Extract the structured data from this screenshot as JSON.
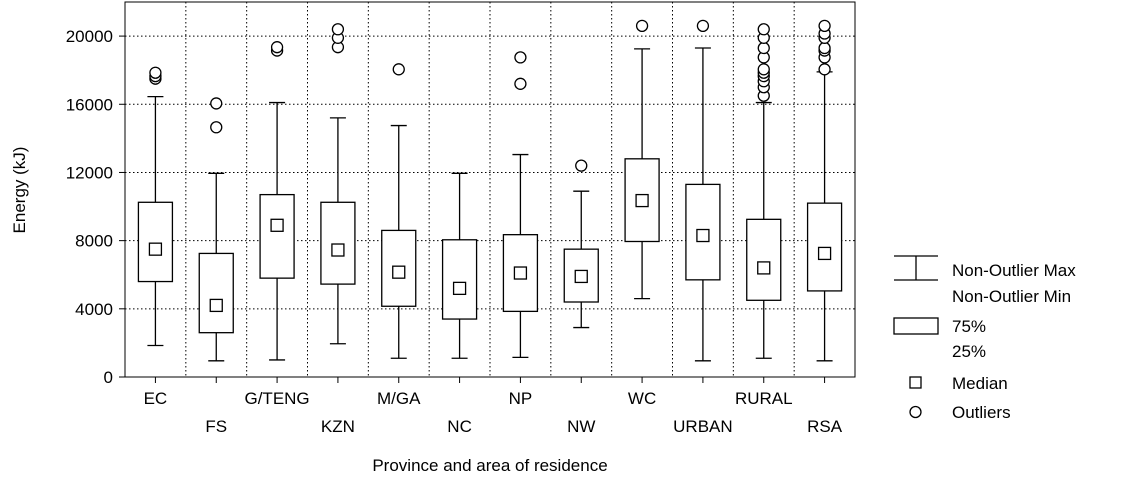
{
  "chart_data": {
    "type": "boxplot",
    "ylabel": "Energy (kJ)",
    "xlabel": "Province and area of residence",
    "ylim": [
      0,
      22000
    ],
    "yticks": [
      0,
      4000,
      8000,
      12000,
      16000,
      20000
    ],
    "grid": true,
    "legend_position": "right",
    "categories": [
      "EC",
      "FS",
      "G/TENG",
      "KZN",
      "M/GA",
      "NC",
      "NP",
      "NW",
      "WC",
      "URBAN",
      "RURAL",
      "RSA"
    ],
    "boxes": [
      {
        "category": "EC",
        "min": 1850,
        "q1": 5600,
        "median": 7500,
        "q3": 10250,
        "max": 16450,
        "outliers": [
          17500,
          17650,
          17850
        ]
      },
      {
        "category": "FS",
        "min": 950,
        "q1": 2600,
        "median": 4200,
        "q3": 7250,
        "max": 11950,
        "outliers": [
          14650,
          16050
        ]
      },
      {
        "category": "G/TENG",
        "min": 1000,
        "q1": 5800,
        "median": 8900,
        "q3": 10700,
        "max": 16100,
        "outliers": [
          19150,
          19350
        ]
      },
      {
        "category": "KZN",
        "min": 1950,
        "q1": 5450,
        "median": 7450,
        "q3": 10250,
        "max": 15200,
        "outliers": [
          19350,
          19900,
          20400
        ]
      },
      {
        "category": "M/GA",
        "min": 1100,
        "q1": 4150,
        "median": 6150,
        "q3": 8600,
        "max": 14750,
        "outliers": [
          18050
        ]
      },
      {
        "category": "NC",
        "min": 1100,
        "q1": 3400,
        "median": 5200,
        "q3": 8050,
        "max": 11950,
        "outliers": []
      },
      {
        "category": "NP",
        "min": 1150,
        "q1": 3850,
        "median": 6100,
        "q3": 8350,
        "max": 13050,
        "outliers": [
          17200,
          18750
        ]
      },
      {
        "category": "NW",
        "min": 2900,
        "q1": 4400,
        "median": 5900,
        "q3": 7500,
        "max": 10900,
        "outliers": [
          12400
        ]
      },
      {
        "category": "WC",
        "min": 4600,
        "q1": 7950,
        "median": 10350,
        "q3": 12800,
        "max": 19250,
        "outliers": [
          20600
        ]
      },
      {
        "category": "URBAN",
        "min": 950,
        "q1": 5700,
        "median": 8300,
        "q3": 11300,
        "max": 19300,
        "outliers": [
          20600
        ]
      },
      {
        "category": "RURAL",
        "min": 1100,
        "q1": 4500,
        "median": 6400,
        "q3": 9250,
        "max": 16100,
        "outliers": [
          16500,
          17000,
          17350,
          17650,
          17850,
          18050,
          18750,
          19300,
          19900,
          20400
        ]
      },
      {
        "category": "RSA",
        "min": 950,
        "q1": 5050,
        "median": 7250,
        "q3": 10200,
        "max": 17900,
        "outliers": [
          18050,
          18750,
          19150,
          19300,
          19900,
          20150,
          20600
        ]
      }
    ],
    "legend": {
      "whisker_max": "Non-Outlier Max",
      "whisker_min": "Non-Outlier Min",
      "box_upper": "75%",
      "box_lower": "25%",
      "median": "Median",
      "outliers": "Outliers"
    }
  }
}
